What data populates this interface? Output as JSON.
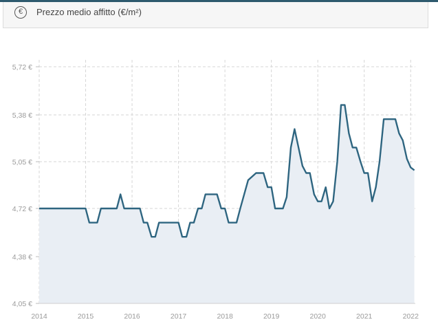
{
  "header": {
    "icon": "euro-circle-icon",
    "icon_glyph": "€",
    "title": "Prezzo medio affitto (€/m²)"
  },
  "chart_data": {
    "type": "area",
    "title": "Prezzo medio affitto (€/m²)",
    "xlabel": "",
    "ylabel": "",
    "x_ticks": [
      "2014",
      "2015",
      "2016",
      "2017",
      "2018",
      "2019",
      "2020",
      "2021",
      "2022"
    ],
    "y_ticks": [
      "4,05 €",
      "4,38 €",
      "4,72 €",
      "5,05 €",
      "5,38 €",
      "5,72 €"
    ],
    "y_tick_values": [
      4.05,
      4.38,
      4.72,
      5.05,
      5.38,
      5.72
    ],
    "ylim": [
      4.05,
      5.72
    ],
    "xlim": [
      2014.0,
      2022.1
    ],
    "grid": true,
    "line_color": "#2e6580",
    "fill_color": "#e9eef4",
    "grid_color": "#d6d6d6",
    "series": [
      {
        "x": [
          2014.0,
          2015.0,
          2015.08,
          2015.25,
          2015.33,
          2015.67,
          2015.75,
          2015.83,
          2016.17,
          2016.25,
          2016.33,
          2016.42,
          2016.5,
          2016.58,
          2017.0,
          2017.08,
          2017.17,
          2017.25,
          2017.33,
          2017.42,
          2017.5,
          2017.58,
          2017.67,
          2017.83,
          2017.92,
          2018.0,
          2018.08,
          2018.25,
          2018.33,
          2018.5,
          2018.67,
          2018.83,
          2018.92,
          2019.0,
          2019.08,
          2019.25,
          2019.33,
          2019.42,
          2019.5,
          2019.67,
          2019.75,
          2019.83,
          2019.92,
          2020.0,
          2020.08,
          2020.17,
          2020.25,
          2020.33,
          2020.42,
          2020.5,
          2020.58,
          2020.67,
          2020.75,
          2020.83,
          2020.92,
          2021.0,
          2021.08,
          2021.17,
          2021.25,
          2021.33,
          2021.42,
          2021.5,
          2021.67,
          2021.75,
          2021.83,
          2021.92,
          2022.0,
          2022.08
        ],
        "values": [
          4.72,
          4.72,
          4.62,
          4.62,
          4.72,
          4.72,
          4.82,
          4.72,
          4.72,
          4.62,
          4.62,
          4.52,
          4.52,
          4.62,
          4.62,
          4.52,
          4.52,
          4.62,
          4.62,
          4.72,
          4.72,
          4.82,
          4.82,
          4.82,
          4.72,
          4.72,
          4.62,
          4.62,
          4.72,
          4.92,
          4.97,
          4.97,
          4.87,
          4.87,
          4.72,
          4.72,
          4.8,
          5.15,
          5.28,
          5.02,
          4.97,
          4.97,
          4.82,
          4.77,
          4.77,
          4.87,
          4.72,
          4.77,
          5.05,
          5.45,
          5.45,
          5.25,
          5.15,
          5.15,
          5.05,
          4.97,
          4.97,
          4.77,
          4.87,
          5.05,
          5.35,
          5.35,
          5.35,
          5.25,
          5.2,
          5.07,
          5.01,
          4.99
        ]
      }
    ]
  }
}
